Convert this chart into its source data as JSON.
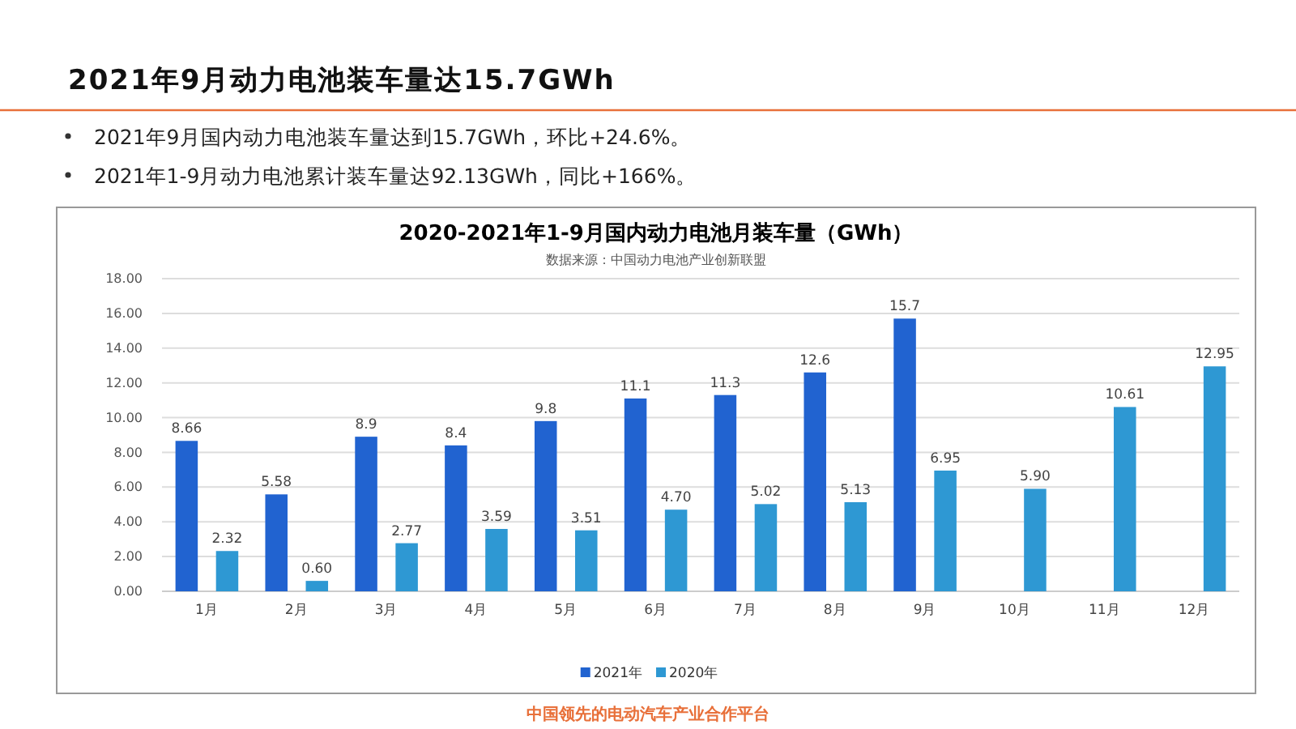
{
  "chart_data": {
    "type": "bar",
    "title": "2021年9月动力电池装车量达15.7GWh",
    "subtitle": "2020-2021年1-9月国内动力电池月装车量（GWh）",
    "annotations": [
      "2021年9月国内动力电池装车量达到15.7GWh，环比+24.6%。",
      "2021年1-9月动力电池累计装车量达92.13GWh，同比+166%。",
      "数据来源：中国动力电池产业创新联盟",
      "中国领先的电动汽车产业合作平台"
    ],
    "categories": [
      "1月",
      "2月",
      "3月",
      "4月",
      "5月",
      "6月",
      "7月",
      "8月",
      "9月",
      "10月",
      "11月",
      "12月"
    ],
    "series": [
      {
        "name": "2021年",
        "color": "#2163d0",
        "values": [
          8.66,
          5.58,
          8.9,
          8.4,
          9.8,
          11.1,
          11.3,
          12.6,
          15.7,
          null,
          null,
          null
        ],
        "value_labels": [
          "8.66",
          "5.58",
          "8.9",
          "8.4",
          "9.8",
          "11.1",
          "11.3",
          "12.6",
          "15.7",
          null,
          null,
          null
        ]
      },
      {
        "name": "2020年",
        "color": "#2e98d3",
        "values": [
          2.32,
          0.6,
          2.77,
          3.59,
          3.51,
          4.7,
          5.02,
          5.13,
          6.95,
          5.9,
          10.61,
          12.95
        ],
        "value_labels": [
          "2.32",
          "0.60",
          "2.77",
          "3.59",
          "3.51",
          "4.70",
          "5.02",
          "5.13",
          "6.95",
          "5.90",
          "10.61",
          "12.95"
        ]
      }
    ],
    "ylim": [
      0,
      18
    ],
    "yticks": [
      {
        "value": 0,
        "label": "0.00"
      },
      {
        "value": 2,
        "label": "2.00"
      },
      {
        "value": 4,
        "label": "4.00"
      },
      {
        "value": 6,
        "label": "6.00"
      },
      {
        "value": 8,
        "label": "8.00"
      },
      {
        "value": 10,
        "label": "10.00"
      },
      {
        "value": 12,
        "label": "12.00"
      },
      {
        "value": 14,
        "label": "14.00"
      },
      {
        "value": 16,
        "label": "16.00"
      },
      {
        "value": 18,
        "label": "18.00"
      }
    ],
    "grid": "y",
    "legend": "bottom"
  }
}
